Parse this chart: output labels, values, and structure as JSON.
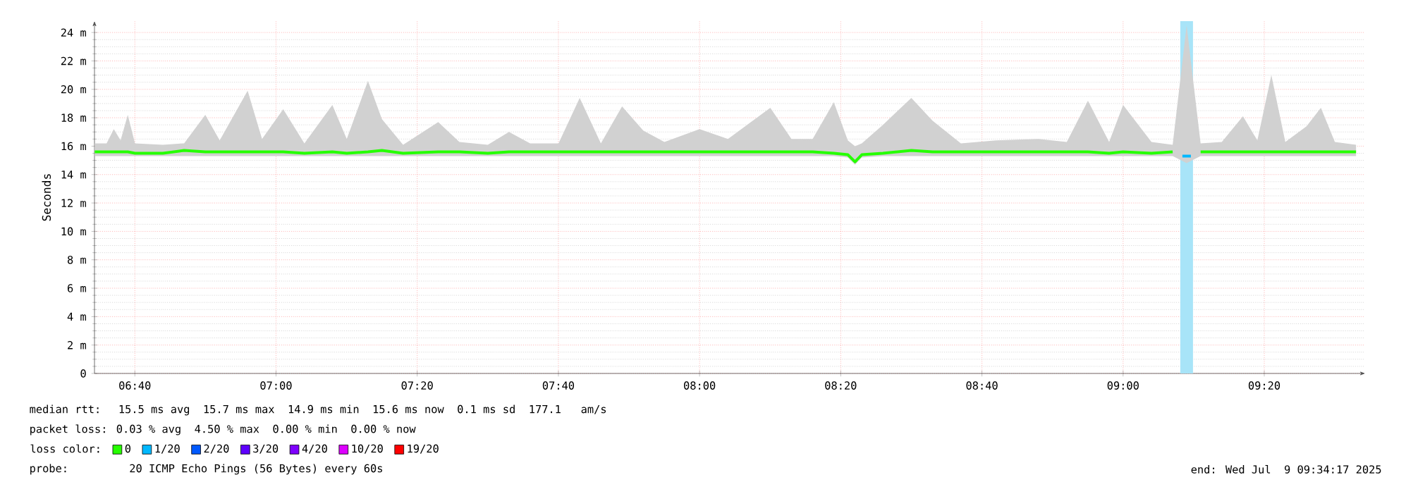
{
  "chart_data": {
    "type": "line",
    "ylabel": "Seconds",
    "xlim": [
      6.5714,
      9.5714
    ],
    "xticks": [
      {
        "value": 6.6667,
        "label": "06:40"
      },
      {
        "value": 7,
        "label": "07:00"
      },
      {
        "value": 7.3333,
        "label": "07:20"
      },
      {
        "value": 7.6667,
        "label": "07:40"
      },
      {
        "value": 8,
        "label": "08:00"
      },
      {
        "value": 8.3333,
        "label": "08:20"
      },
      {
        "value": 8.6667,
        "label": "08:40"
      },
      {
        "value": 9,
        "label": "09:00"
      },
      {
        "value": 9.3333,
        "label": "09:20"
      }
    ],
    "ylim": [
      0,
      24.8
    ],
    "yticks": [
      0,
      {
        "value": 2,
        "label": "2 m"
      },
      {
        "value": 4,
        "label": "4 m"
      },
      {
        "value": 6,
        "label": "6 m"
      },
      {
        "value": 8,
        "label": "8 m"
      },
      {
        "value": 10,
        "label": "10 m"
      },
      {
        "value": 12,
        "label": "12 m"
      },
      {
        "value": 14,
        "label": "14 m"
      },
      {
        "value": 16,
        "label": "16 m"
      },
      {
        "value": 18,
        "label": "18 m"
      },
      {
        "value": 20,
        "label": "20 m"
      },
      {
        "value": 22,
        "label": "22 m"
      },
      {
        "value": 24,
        "label": "24 m"
      }
    ],
    "grid": true,
    "legend": "bottom",
    "legend_title": "loss color:",
    "bands": [
      {
        "axis": "x",
        "from": 9.135,
        "to": 9.165,
        "color": "#a8e4f8"
      }
    ],
    "series": [
      {
        "name": "0",
        "color": "#26ff00",
        "x": [
          6.572,
          6.6,
          6.617,
          6.633,
          6.65,
          6.667,
          6.733,
          6.783,
          6.833,
          6.867,
          6.933,
          6.967,
          7.017,
          7.067,
          7.133,
          7.167,
          7.217,
          7.25,
          7.3,
          7.383,
          7.433,
          7.5,
          7.55,
          7.6,
          7.667,
          7.717,
          7.767,
          7.817,
          7.867,
          7.917,
          8.0,
          8.067,
          8.167,
          8.217,
          8.267,
          8.317,
          8.35,
          8.367,
          8.383,
          8.433,
          8.5,
          8.55,
          8.617,
          8.7,
          8.8,
          8.867,
          8.917,
          8.967,
          9.0,
          9.067,
          9.117,
          9.15,
          9.183,
          9.233,
          9.283,
          9.317,
          9.35,
          9.383,
          9.433,
          9.467,
          9.5,
          9.55
        ],
        "values": [
          15.6,
          15.6,
          15.6,
          15.6,
          15.6,
          15.5,
          15.5,
          15.7,
          15.6,
          15.6,
          15.6,
          15.6,
          15.6,
          15.5,
          15.6,
          15.5,
          15.6,
          15.7,
          15.5,
          15.6,
          15.6,
          15.5,
          15.6,
          15.6,
          15.6,
          15.6,
          15.6,
          15.6,
          15.6,
          15.6,
          15.6,
          15.6,
          15.6,
          15.6,
          15.6,
          15.5,
          15.4,
          14.9,
          15.4,
          15.5,
          15.7,
          15.6,
          15.6,
          15.6,
          15.6,
          15.6,
          15.6,
          15.5,
          15.6,
          15.5,
          15.6,
          null,
          15.6,
          15.6,
          15.6,
          15.6,
          15.6,
          15.6,
          15.6,
          15.6,
          15.6,
          15.6
        ],
        "lower": [
          15.3,
          15.3,
          15.3,
          15.3,
          15.3,
          15.3,
          15.3,
          15.3,
          15.3,
          15.3,
          15.3,
          15.3,
          15.3,
          15.3,
          15.3,
          15.3,
          15.3,
          15.3,
          15.3,
          15.3,
          15.3,
          15.3,
          15.3,
          15.3,
          15.3,
          15.3,
          15.3,
          15.3,
          15.3,
          15.3,
          15.3,
          15.3,
          15.3,
          15.3,
          15.3,
          15.3,
          15.2,
          14.7,
          15.2,
          15.3,
          15.3,
          15.3,
          15.3,
          15.3,
          15.3,
          15.3,
          15.3,
          15.3,
          15.3,
          15.3,
          15.3,
          14.8,
          15.3,
          15.3,
          15.3,
          15.3,
          15.3,
          15.3,
          15.3,
          15.3,
          15.3,
          15.3
        ],
        "upper": [
          16.2,
          16.2,
          17.2,
          16.4,
          18.2,
          16.2,
          16.1,
          16.2,
          18.2,
          16.4,
          19.9,
          16.5,
          18.6,
          16.2,
          18.9,
          16.5,
          20.6,
          17.9,
          16.1,
          17.7,
          16.3,
          16.1,
          17.0,
          16.2,
          16.2,
          19.4,
          16.2,
          18.8,
          17.1,
          16.3,
          17.2,
          16.5,
          18.7,
          16.5,
          16.5,
          19.1,
          16.4,
          16.0,
          16.2,
          17.5,
          19.4,
          17.8,
          16.2,
          16.4,
          16.5,
          16.3,
          19.2,
          16.3,
          18.9,
          16.3,
          16.1,
          24.5,
          16.2,
          16.3,
          18.1,
          16.4,
          21.0,
          16.3,
          17.4,
          18.7,
          16.3,
          16.1
        ]
      },
      {
        "name": "1/20",
        "color": "#00b8ff",
        "x": [
          9.14,
          9.16
        ],
        "values": [
          15.3,
          15.3
        ]
      },
      {
        "name": "2/20",
        "color": "#0059ff"
      },
      {
        "name": "3/20",
        "color": "#5e00ff"
      },
      {
        "name": "4/20",
        "color": "#7e00ff"
      },
      {
        "name": "10/20",
        "color": "#dd00ff"
      },
      {
        "name": "19/20",
        "color": "#ff0000"
      }
    ],
    "annotations": [
      "median rtt:  15.5 ms avg  15.7 ms max  14.9 ms min  15.6 ms now  0.1 ms sd  177.1   am/s",
      "packet loss: 0.03 % avg  4.50 % max  0.00 % min  0.00 % now",
      "probe:       20 ICMP Echo Pings (56 Bytes) every 60s",
      "end: Wed Jul  9 09:34:17 2025"
    ]
  }
}
